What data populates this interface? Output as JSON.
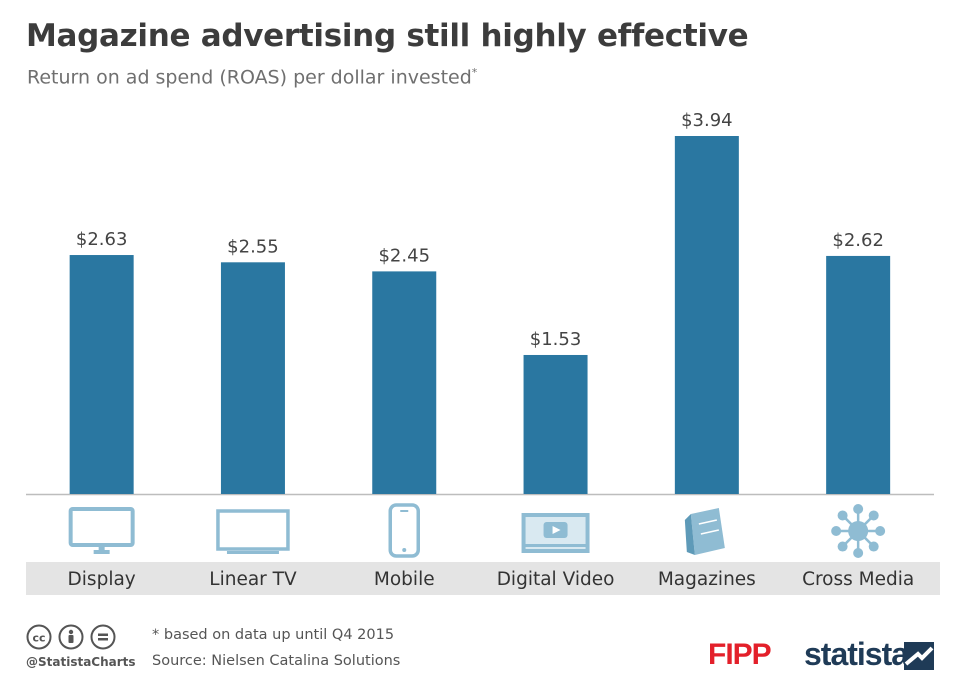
{
  "title": "Magazine advertising still highly effective",
  "subtitle": "Return on ad spend (ROAS) per dollar invested",
  "subtitle_mark": "*",
  "chart_data": {
    "type": "bar",
    "title": "Magazine advertising still highly effective",
    "subtitle": "Return on ad spend (ROAS) per dollar invested*",
    "categories": [
      "Display",
      "Linear TV",
      "Mobile",
      "Digital Video",
      "Magazines",
      "Cross Media"
    ],
    "values": [
      2.63,
      2.55,
      2.45,
      1.53,
      3.94,
      2.62
    ],
    "value_labels": [
      "$2.63",
      "$2.55",
      "$2.45",
      "$1.53",
      "$3.94",
      "$2.62"
    ],
    "icons": [
      "monitor-icon",
      "tv-icon",
      "smartphone-icon",
      "video-player-icon",
      "magazine-icon",
      "network-icon"
    ],
    "ylim": [
      0,
      4
    ],
    "xlabel": "",
    "ylabel": "",
    "grid": false,
    "bar_color": "#2a77a1",
    "icon_color": "#8fbcd3"
  },
  "footnote": "* based on data up until Q4 2015",
  "source": "Source: Nielsen Catalina Solutions",
  "handle": "@StatistaCharts",
  "brand_fipp": "FIPP",
  "brand_statista": "statista",
  "colors": {
    "title": "#3c3c3c",
    "band": "#e4e4e4",
    "fipp": "#e3202a",
    "statista": "#1f3b57"
  }
}
